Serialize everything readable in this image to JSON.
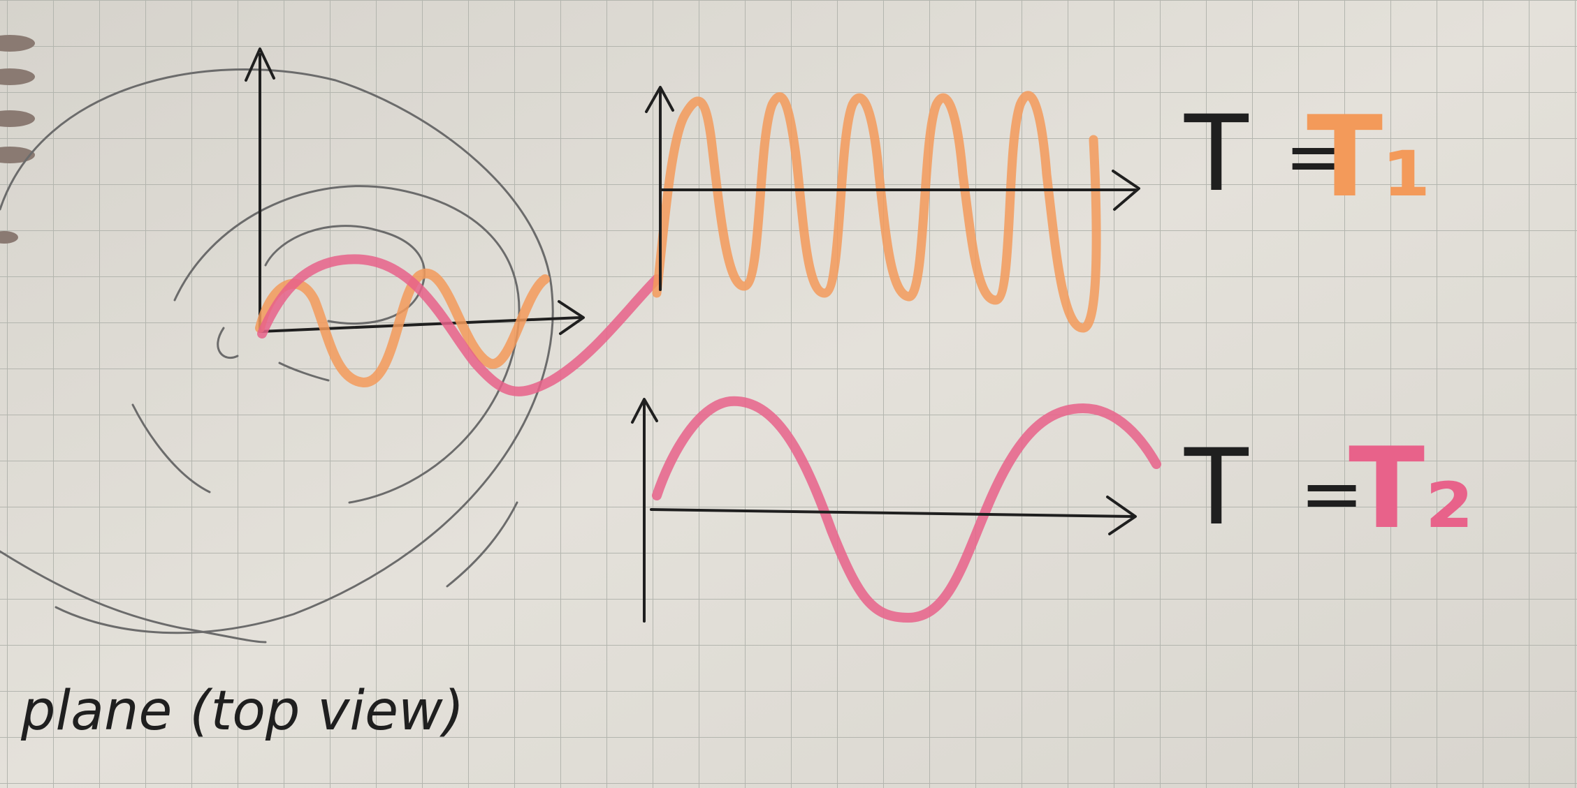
{
  "labels": {
    "caption": "plane (top view)",
    "eq1_var": "T",
    "eq1_eq": "=",
    "eq1_val": "T₁",
    "eq2_var": "T",
    "eq2_eq": "=",
    "eq2_val": "T₂"
  },
  "colors": {
    "paper": "#dcd9d2",
    "grid": "#b3b5ae",
    "ink": "#1f1f1f",
    "pencil": "#6b6b6b",
    "orange": "#f39a5a",
    "pink": "#e8628a"
  }
}
